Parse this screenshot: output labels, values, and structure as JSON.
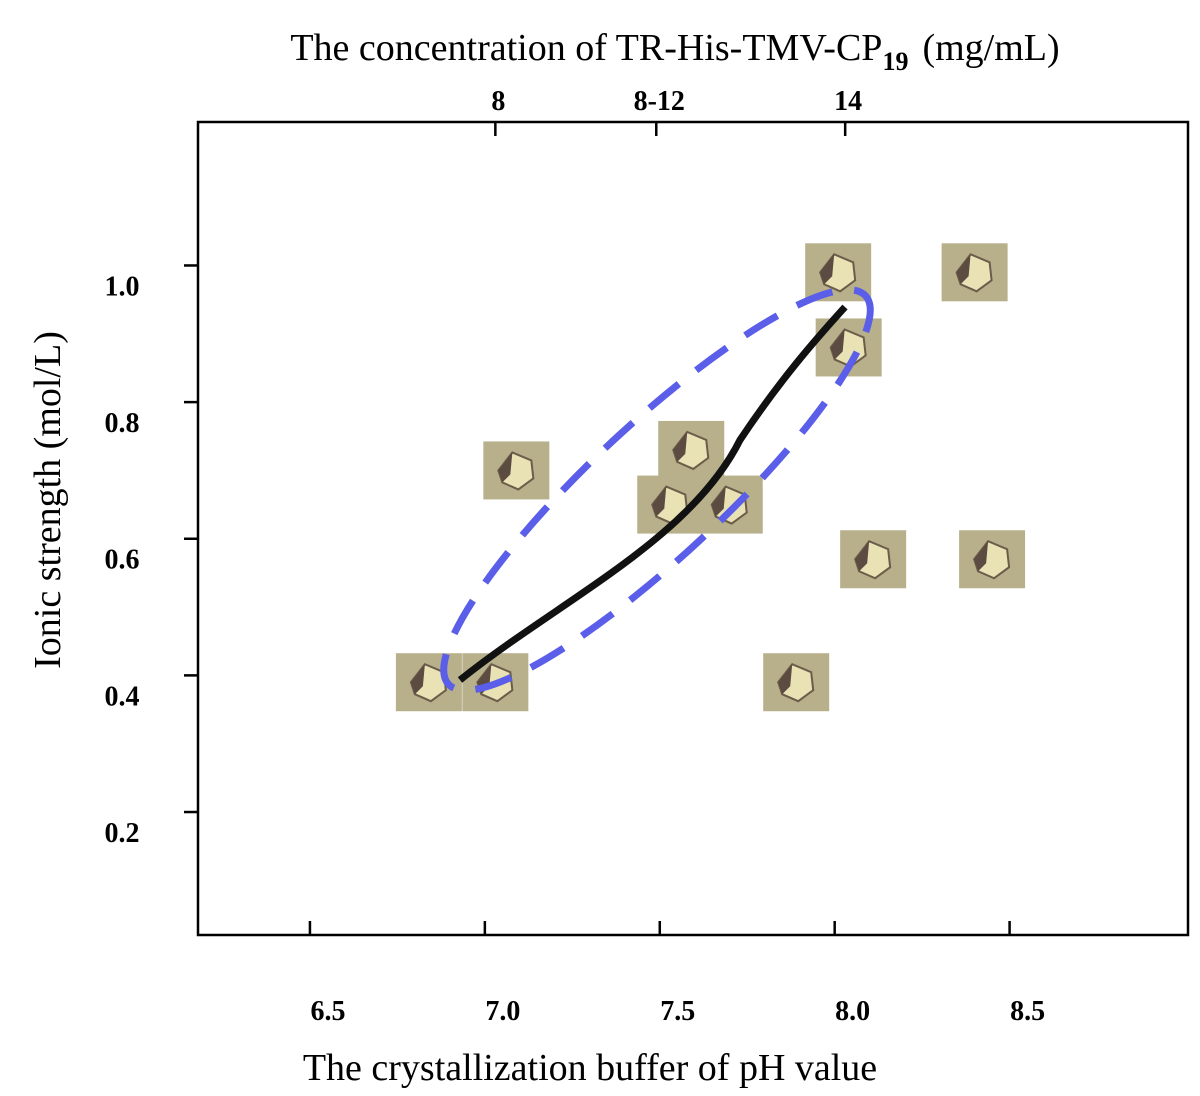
{
  "chart_data": {
    "type": "scatter",
    "title": "The concentration of TR-His-TMV-CP",
    "title_subscript": "19",
    "title_unit": "(mg/mL)",
    "x_label": "The crystallization buffer of pH value",
    "y_label": "Ionic strength (mol/L)",
    "xlim": [
      6.18,
      9.01
    ],
    "ylim": [
      0.02,
      1.21
    ],
    "xticks": [
      6.5,
      {
        "value": 7.0,
        "label": "7.0"
      },
      7.5,
      {
        "value": 8.0,
        "label": "8.0"
      },
      8.5
    ],
    "yticks": [
      0.2,
      0.4,
      0.6,
      0.8,
      {
        "value": 1.0,
        "label": "1.0"
      }
    ],
    "top_ticks": [
      {
        "value": 7.03,
        "label": "8"
      },
      {
        "value": 7.49,
        "label": "8-12"
      },
      {
        "value": 8.03,
        "label": "14"
      }
    ],
    "x": [
      6.84,
      7.03,
      7.09,
      7.59,
      7.53,
      7.7,
      8.01,
      8.04,
      8.11,
      8.4,
      8.45,
      7.89
    ],
    "values": [
      0.39,
      0.39,
      0.7,
      0.73,
      0.65,
      0.65,
      0.99,
      0.88,
      0.57,
      0.99,
      0.57,
      0.39
    ],
    "color": "#b7b08a"
  }
}
